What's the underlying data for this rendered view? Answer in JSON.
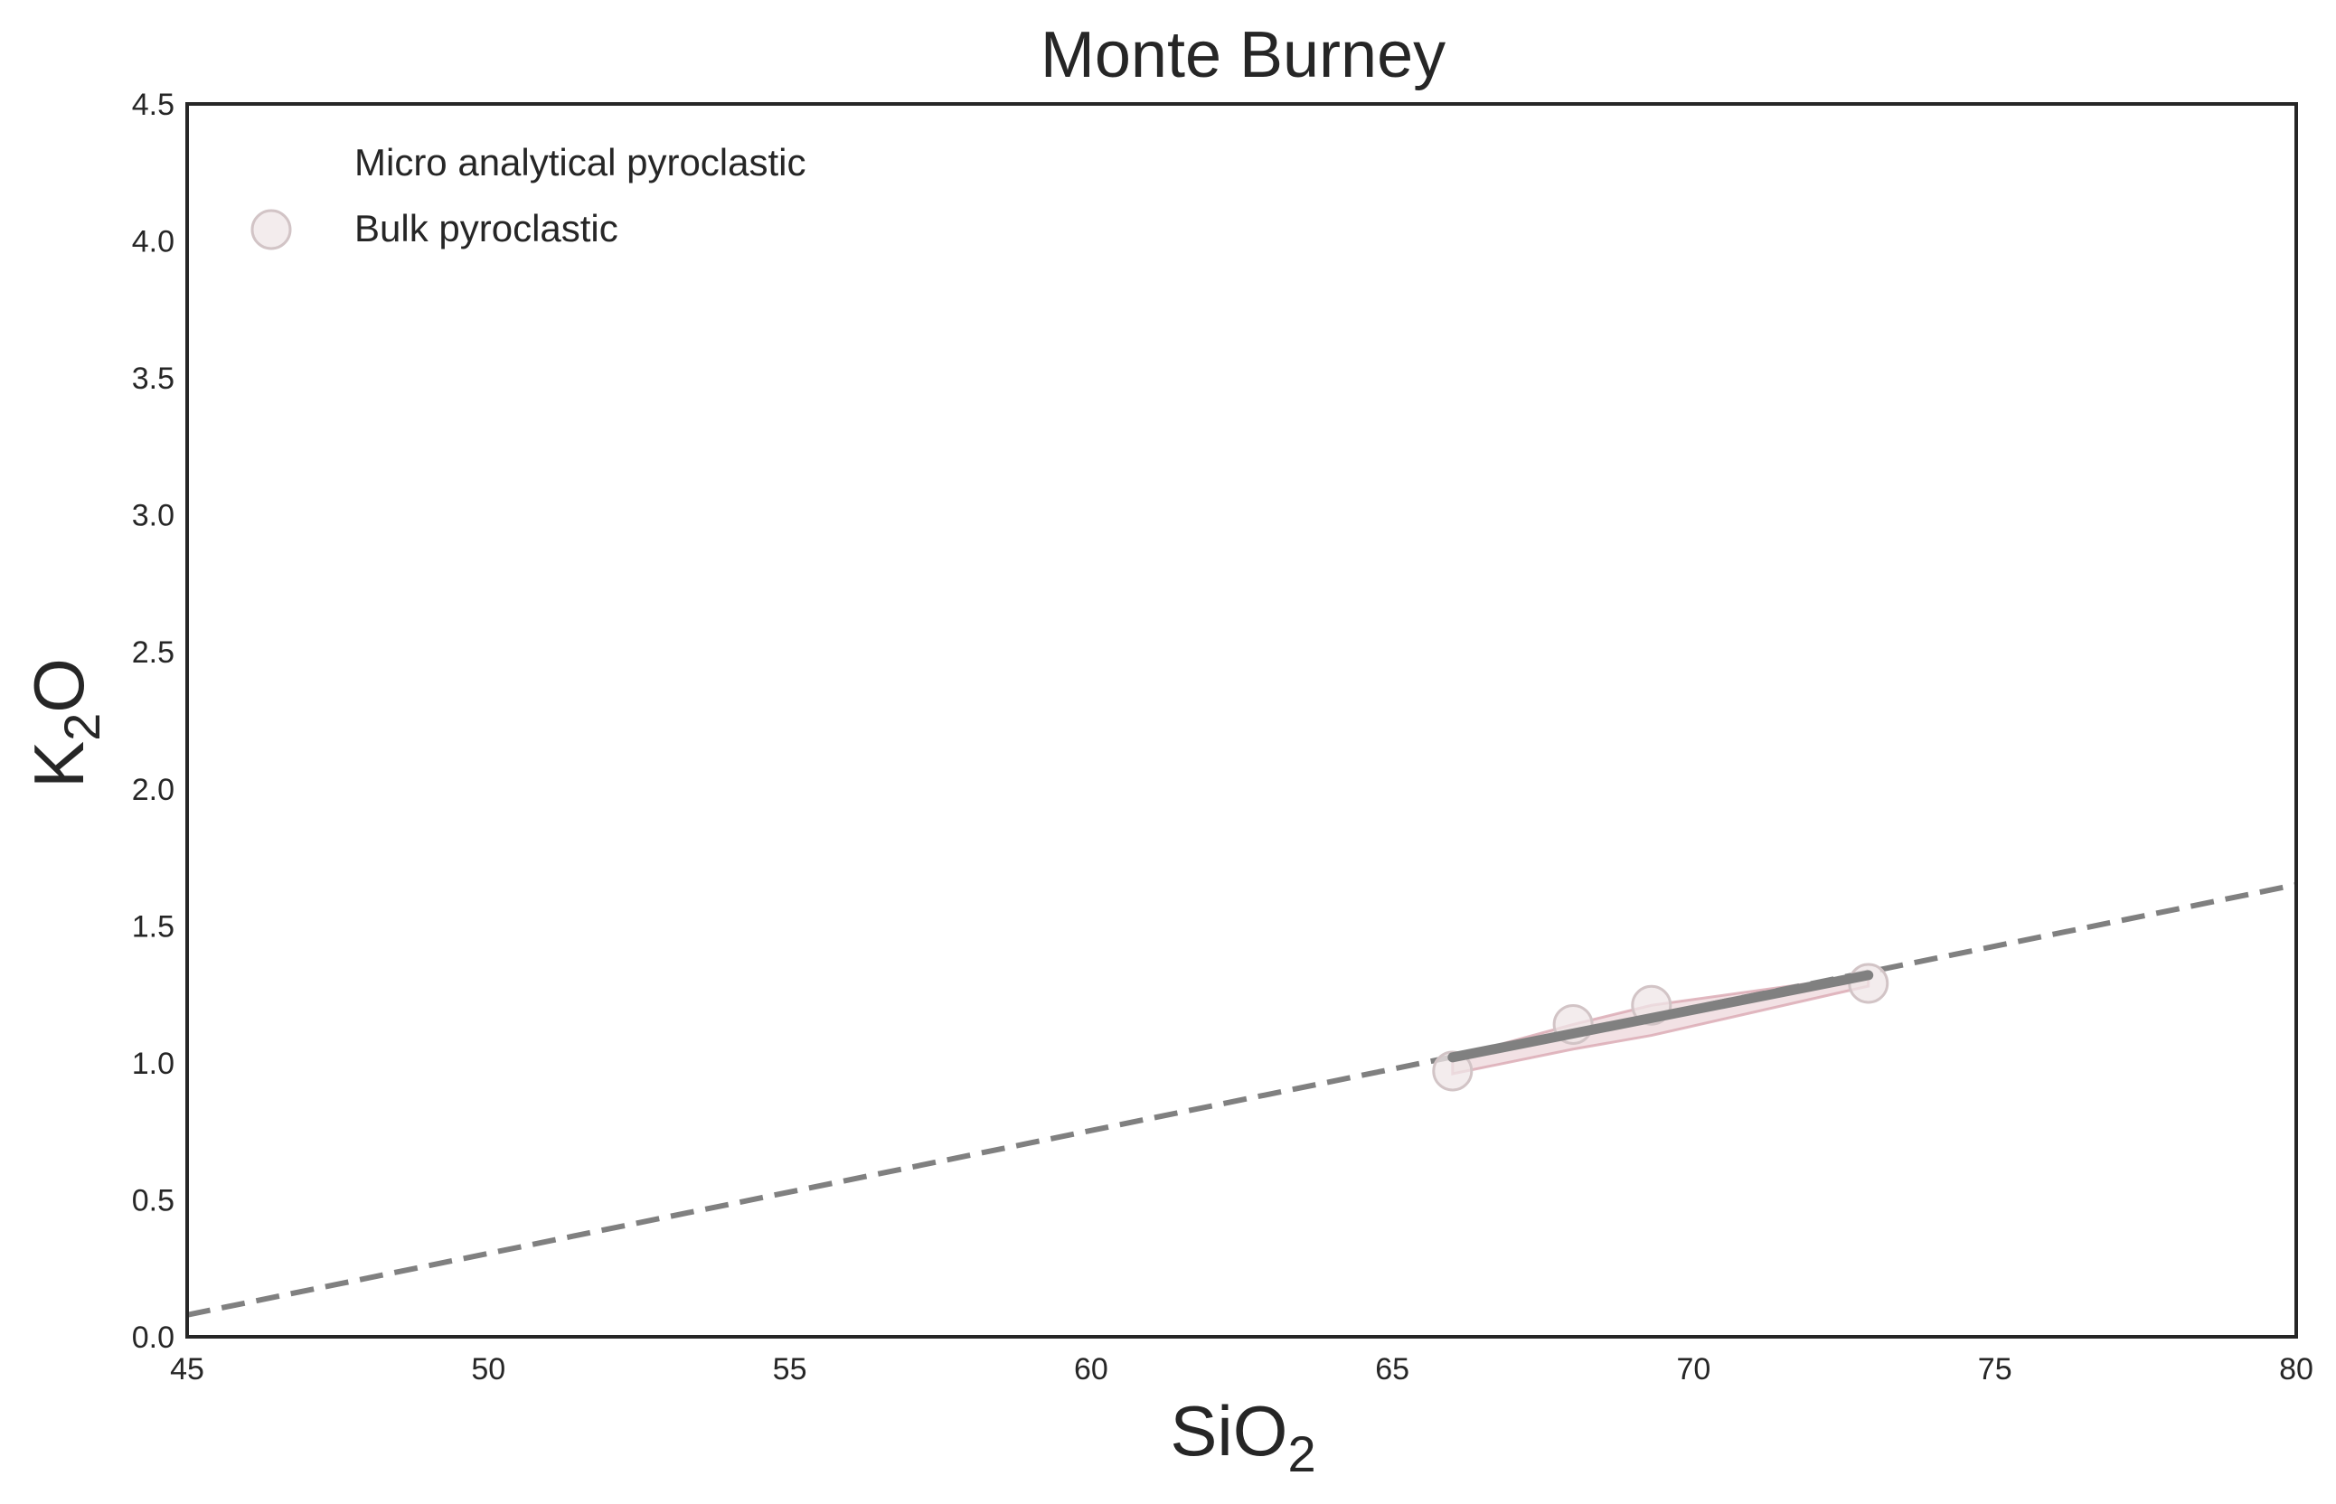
{
  "chart_data": {
    "type": "scatter",
    "title": "Monte Burney",
    "xlabel": {
      "main": "SiO",
      "sub": "2"
    },
    "ylabel": {
      "main": "K",
      "sub": "2",
      "tail": "O"
    },
    "xlim": [
      45,
      80
    ],
    "ylim": [
      0,
      4.5
    ],
    "xticks": [
      45,
      50,
      55,
      60,
      65,
      70,
      75,
      80
    ],
    "xtick_labels": [
      "45",
      "50",
      "55",
      "60",
      "65",
      "70",
      "75",
      "80"
    ],
    "yticks": [
      0,
      0.5,
      1,
      1.5,
      2,
      2.5,
      3,
      3.5,
      4,
      4.5
    ],
    "ytick_labels": [
      "0.0",
      "0.5",
      "1.0",
      "1.5",
      "2.0",
      "2.5",
      "3.0",
      "3.5",
      "4.0",
      "4.5"
    ],
    "grid": false,
    "legend_position": "top-left",
    "legend": [
      {
        "label": "Micro analytical pyroclastic",
        "marker": "none"
      },
      {
        "label": "Bulk pyroclastic",
        "marker": "circle"
      }
    ],
    "series": [
      {
        "name": "Micro analytical pyroclastic",
        "kind": "scatter",
        "x": [],
        "y": []
      },
      {
        "name": "Bulk pyroclastic",
        "kind": "scatter",
        "x": [
          66.0,
          68.0,
          69.3,
          72.9
        ],
        "y": [
          0.97,
          1.14,
          1.21,
          1.29
        ],
        "color": "#c9b0b4"
      }
    ],
    "reference_lines": [
      {
        "style": "dashed",
        "color": "#808080",
        "x": [
          45,
          80
        ],
        "y": [
          0.08,
          1.65
        ]
      }
    ],
    "trend_lines": [
      {
        "style": "solid",
        "color": "#808080",
        "x": [
          66.0,
          72.9
        ],
        "y": [
          1.02,
          1.32
        ]
      }
    ],
    "envelope": {
      "color": "#d9a8b2",
      "upper": {
        "x": [
          66.0,
          68.0,
          69.3,
          72.9
        ],
        "y": [
          1.02,
          1.14,
          1.21,
          1.32
        ]
      },
      "lower": {
        "x": [
          66.0,
          68.0,
          69.3,
          72.9
        ],
        "y": [
          0.96,
          1.05,
          1.1,
          1.28
        ]
      }
    }
  }
}
